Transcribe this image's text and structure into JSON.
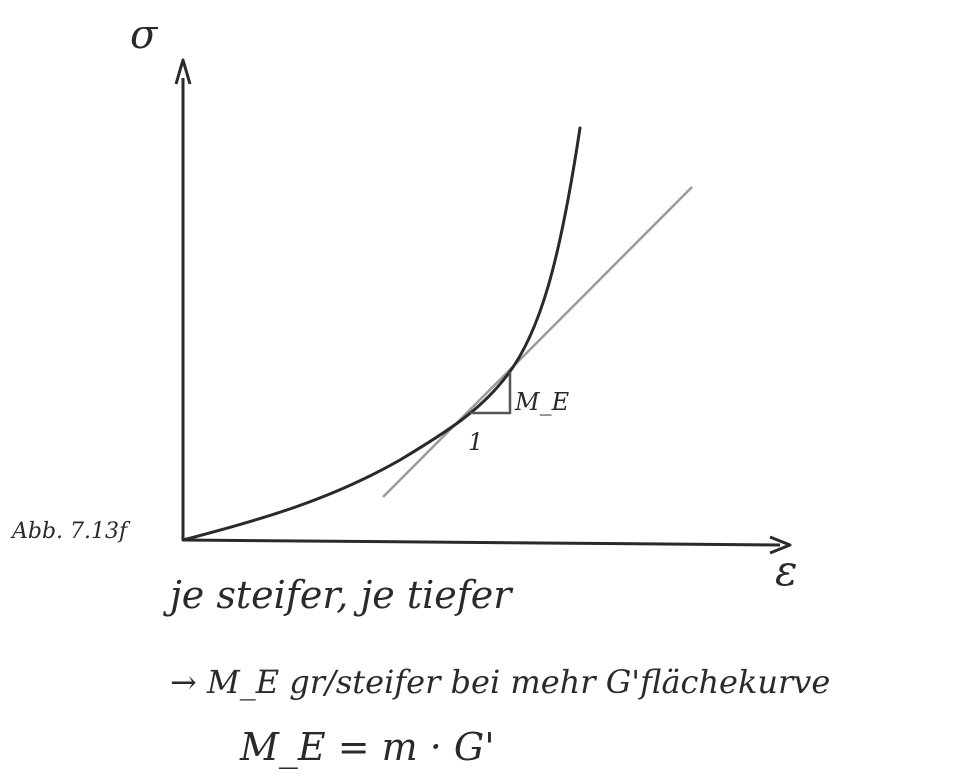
{
  "figure": {
    "y_axis_label": "σ",
    "x_axis_label": "ε",
    "figure_ref": "Abb. 7.13f",
    "slope_run_label": "1",
    "slope_rise_label": "M_E",
    "curve_description": "convex stress-strain curve with tangent line"
  },
  "notes": {
    "line1": "je steifer, je tiefer",
    "line2": "→ M_E gr/steifer bei mehr G'flächekurve",
    "line3": "M_E = m · G'"
  },
  "colors": {
    "ink": "#2a2a2a",
    "tangent": "#9a9a9a"
  }
}
